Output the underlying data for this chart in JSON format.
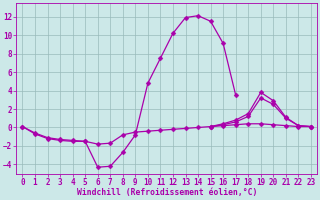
{
  "xlabel": "Windchill (Refroidissement éolien,°C)",
  "bg_color": "#cce8e8",
  "grid_color": "#99bbbb",
  "line_color": "#aa00aa",
  "x_full": [
    0,
    1,
    2,
    3,
    4,
    5,
    6,
    7,
    8,
    9,
    10,
    11,
    12,
    13,
    14,
    15,
    16,
    17,
    18,
    19,
    20,
    21,
    22,
    23
  ],
  "line_main": [
    0.1,
    -0.7,
    -1.2,
    -1.4,
    -1.5,
    -1.5,
    -4.3,
    -4.2,
    -2.7,
    -0.8,
    4.8,
    7.5,
    10.2,
    11.9,
    12.1,
    11.5,
    9.1,
    3.5,
    null,
    null,
    null,
    null,
    null,
    null
  ],
  "line_flat": [
    0.1,
    -0.6,
    -1.1,
    -1.3,
    -1.4,
    -1.5,
    -1.8,
    -1.7,
    -0.8,
    -0.5,
    -0.4,
    -0.3,
    -0.2,
    -0.1,
    0.0,
    0.1,
    0.2,
    0.3,
    0.4,
    0.4,
    0.3,
    0.2,
    0.1,
    0.1
  ],
  "line_right1": [
    null,
    null,
    null,
    null,
    null,
    null,
    null,
    null,
    null,
    null,
    null,
    null,
    null,
    null,
    null,
    0.1,
    0.3,
    0.6,
    1.2,
    3.2,
    2.5,
    1.0,
    0.2,
    0.1
  ],
  "line_right2": [
    null,
    null,
    null,
    null,
    null,
    null,
    null,
    null,
    null,
    null,
    null,
    null,
    null,
    null,
    null,
    0.1,
    0.4,
    0.8,
    1.5,
    3.8,
    2.9,
    1.1,
    0.2,
    0.1
  ],
  "ylim": [
    -5.0,
    13.5
  ],
  "xlim": [
    -0.5,
    23.5
  ],
  "yticks": [
    -4,
    -2,
    0,
    2,
    4,
    6,
    8,
    10,
    12
  ],
  "xticks": [
    0,
    1,
    2,
    3,
    4,
    5,
    6,
    7,
    8,
    9,
    10,
    11,
    12,
    13,
    14,
    15,
    16,
    17,
    18,
    19,
    20,
    21,
    22,
    23
  ],
  "marker_size": 2.5,
  "line_width": 0.9,
  "tick_fontsize": 5.5,
  "xlabel_fontsize": 5.8
}
